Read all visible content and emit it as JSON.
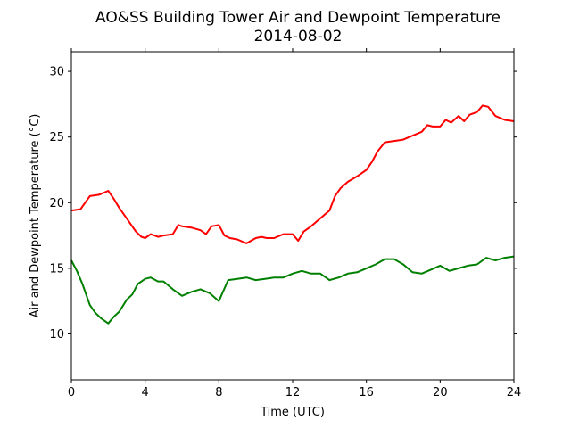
{
  "chart_data": {
    "type": "line",
    "title": "AO&SS Building Tower Air and Dewpoint Temperature",
    "subtitle": "2014-08-02",
    "xlabel": "Time (UTC)",
    "ylabel": "Air and Dewpoint Temperature (°C)",
    "xlim": [
      0,
      24
    ],
    "ylim": [
      6.5,
      31.5
    ],
    "xticks": [
      0,
      4,
      8,
      12,
      16,
      20,
      24
    ],
    "yticks": [
      10,
      15,
      20,
      25,
      30
    ],
    "grid": false,
    "legend": "none",
    "series": [
      {
        "color": "#ff0000",
        "x": [
          0,
          0.5,
          1,
          1.5,
          2,
          2.3,
          2.6,
          3,
          3.5,
          3.8,
          4,
          4.3,
          4.7,
          5,
          5.5,
          5.8,
          6,
          6.5,
          7,
          7.3,
          7.6,
          8,
          8.3,
          8.6,
          9,
          9.5,
          10,
          10.3,
          10.6,
          11,
          11.5,
          12,
          12.3,
          12.6,
          13,
          13.5,
          14,
          14.3,
          14.6,
          15,
          15.5,
          16,
          16.3,
          16.6,
          17,
          17.5,
          18,
          18.5,
          19,
          19.3,
          19.6,
          20,
          20.3,
          20.6,
          21,
          21.3,
          21.6,
          22,
          22.3,
          22.6,
          23,
          23.5,
          24
        ],
        "values": [
          19.4,
          19.5,
          20.5,
          20.6,
          20.9,
          20.3,
          19.6,
          18.8,
          17.8,
          17.4,
          17.3,
          17.6,
          17.4,
          17.5,
          17.6,
          18.3,
          18.2,
          18.1,
          17.9,
          17.6,
          18.2,
          18.3,
          17.5,
          17.3,
          17.2,
          16.9,
          17.3,
          17.4,
          17.3,
          17.3,
          17.6,
          17.6,
          17.1,
          17.8,
          18.2,
          18.8,
          19.4,
          20.5,
          21.1,
          21.6,
          22.0,
          22.5,
          23.1,
          23.9,
          24.6,
          24.7,
          24.8,
          25.1,
          25.4,
          25.9,
          25.8,
          25.8,
          26.3,
          26.1,
          26.6,
          26.2,
          26.7,
          26.9,
          27.4,
          27.3,
          26.6,
          26.3,
          26.2
        ]
      },
      {
        "color": "#008000",
        "x": [
          0,
          0.3,
          0.6,
          1,
          1.3,
          1.6,
          2,
          2.3,
          2.6,
          3,
          3.3,
          3.6,
          4,
          4.3,
          4.7,
          5,
          5.5,
          6,
          6.5,
          7,
          7.5,
          8,
          8.5,
          9,
          9.5,
          10,
          10.5,
          11,
          11.5,
          12,
          12.5,
          13,
          13.5,
          14,
          14.5,
          15,
          15.5,
          16,
          16.5,
          17,
          17.5,
          18,
          18.5,
          19,
          19.5,
          20,
          20.5,
          21,
          21.5,
          22,
          22.5,
          23,
          23.5,
          24
        ],
        "values": [
          15.6,
          14.8,
          13.8,
          12.2,
          11.6,
          11.2,
          10.8,
          11.3,
          11.7,
          12.6,
          13.0,
          13.8,
          14.2,
          14.3,
          14.0,
          14.0,
          13.4,
          12.9,
          13.2,
          13.4,
          13.1,
          12.5,
          14.1,
          14.2,
          14.3,
          14.1,
          14.2,
          14.3,
          14.3,
          14.6,
          14.8,
          14.6,
          14.6,
          14.1,
          14.3,
          14.6,
          14.7,
          15.0,
          15.3,
          15.7,
          15.7,
          15.3,
          14.7,
          14.6,
          14.9,
          15.2,
          14.8,
          15.0,
          15.2,
          15.3,
          15.8,
          15.6,
          15.8,
          15.9
        ]
      }
    ]
  }
}
